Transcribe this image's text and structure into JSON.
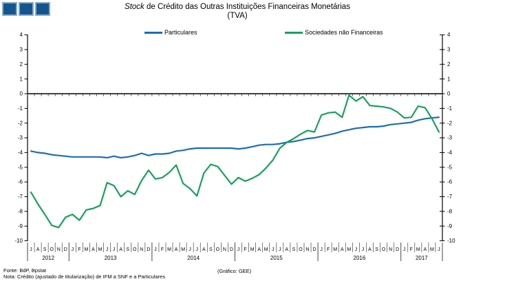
{
  "title": {
    "italic": "Stock",
    "rest": " de Crédito das Outras Instituições Financeiras Monetárias",
    "line2": "(TVA)"
  },
  "legend": [
    {
      "label": "Particulares",
      "color": "#1b6db5"
    },
    {
      "label": "Sociedades não Financeiras",
      "color": "#16a05d"
    }
  ],
  "chart_data": {
    "type": "line",
    "title": "Stock de Crédito das Outras Instituições Financeiras Monetárias (TVA)",
    "ylim": [
      -10,
      4
    ],
    "yticks": [
      4,
      3,
      2,
      1,
      0,
      -1,
      -2,
      -3,
      -4,
      -5,
      -6,
      -7,
      -8,
      -9,
      -10
    ],
    "grid": false,
    "legend_position": "top",
    "x_months": [
      "J",
      "A",
      "S",
      "O",
      "N",
      "D",
      "J",
      "F",
      "M",
      "A",
      "M",
      "J",
      "J",
      "A",
      "S",
      "O",
      "N",
      "D",
      "J",
      "F",
      "M",
      "A",
      "M",
      "J",
      "J",
      "A",
      "S",
      "O",
      "N",
      "D",
      "J",
      "F",
      "M",
      "A",
      "M",
      "J",
      "J",
      "A",
      "S",
      "O",
      "N",
      "D",
      "J",
      "F",
      "M",
      "A",
      "M",
      "J",
      "J",
      "A",
      "S",
      "O",
      "N",
      "D",
      "J",
      "F",
      "M",
      "A",
      "M",
      "J"
    ],
    "years": [
      {
        "label": "2012",
        "start": 0,
        "count": 6
      },
      {
        "label": "2013",
        "start": 6,
        "count": 12
      },
      {
        "label": "2014",
        "start": 18,
        "count": 12
      },
      {
        "label": "2015",
        "start": 30,
        "count": 12
      },
      {
        "label": "2016",
        "start": 42,
        "count": 12
      },
      {
        "label": "2017",
        "start": 54,
        "count": 6
      }
    ],
    "series": [
      {
        "name": "Particulares",
        "color": "#1b6db5",
        "values": [
          -3.9,
          -4.0,
          -4.05,
          -4.15,
          -4.2,
          -4.25,
          -4.3,
          -4.3,
          -4.3,
          -4.3,
          -4.3,
          -4.35,
          -4.25,
          -4.35,
          -4.3,
          -4.2,
          -4.05,
          -4.2,
          -4.1,
          -4.1,
          -4.05,
          -3.9,
          -3.85,
          -3.75,
          -3.7,
          -3.7,
          -3.7,
          -3.7,
          -3.7,
          -3.7,
          -3.75,
          -3.7,
          -3.6,
          -3.5,
          -3.45,
          -3.45,
          -3.4,
          -3.3,
          -3.25,
          -3.15,
          -3.05,
          -3.0,
          -2.9,
          -2.8,
          -2.7,
          -2.55,
          -2.45,
          -2.35,
          -2.3,
          -2.25,
          -2.25,
          -2.2,
          -2.1,
          -2.05,
          -2.0,
          -1.95,
          -1.8,
          -1.7,
          -1.65,
          -1.6
        ]
      },
      {
        "name": "Sociedades não Financeiras",
        "color": "#16a05d",
        "values": [
          -6.7,
          -7.5,
          -8.2,
          -8.95,
          -9.1,
          -8.4,
          -8.2,
          -8.6,
          -7.9,
          -7.8,
          -7.6,
          -6.05,
          -6.25,
          -7.0,
          -6.6,
          -6.85,
          -5.9,
          -5.2,
          -5.8,
          -5.7,
          -5.35,
          -4.85,
          -6.1,
          -6.45,
          -6.95,
          -5.4,
          -4.8,
          -4.95,
          -5.55,
          -6.15,
          -5.7,
          -5.95,
          -5.75,
          -5.5,
          -5.05,
          -4.5,
          -3.7,
          -3.3,
          -3.05,
          -2.75,
          -2.5,
          -2.6,
          -1.45,
          -1.3,
          -1.25,
          -1.6,
          -0.1,
          -0.5,
          -0.2,
          -0.8,
          -0.85,
          -0.9,
          -1.0,
          -1.25,
          -1.65,
          -1.6,
          -0.85,
          -0.95,
          -1.7,
          -2.6
        ]
      }
    ]
  },
  "footer": {
    "source": "Fonte: BdP, Bpstat",
    "note": "Nota: Crédito (ajustado de titularização) de IFM a SNF e a Particulares",
    "credit": "(Gráfico: GEE)"
  }
}
